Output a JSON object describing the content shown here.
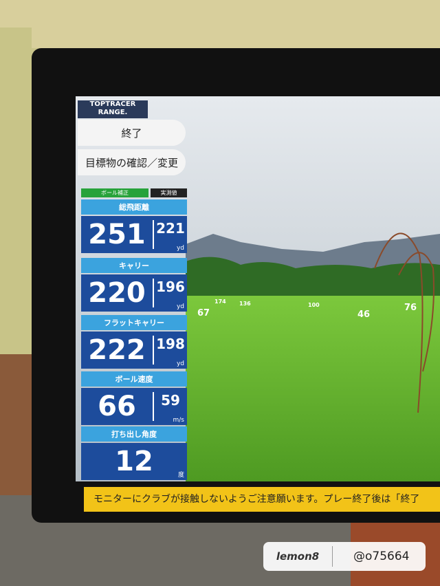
{
  "logo": {
    "brand": "TOPTRACER",
    "sub": "RANGE."
  },
  "buttons": [
    "終了",
    "目標物の確認／変更"
  ],
  "panel_header": {
    "left": "ボール補正",
    "right": "実測値"
  },
  "metrics": [
    {
      "label": "総飛距離",
      "value": 251,
      "measured": 221,
      "unit": "yd"
    },
    {
      "label": "キャリー",
      "value": 220,
      "measured": 196,
      "unit": "yd"
    },
    {
      "label": "フラットキャリー",
      "value": 222,
      "measured": 198,
      "unit": "yd"
    },
    {
      "label": "ボール速度",
      "value": 66,
      "measured": 59,
      "unit": "m/s"
    },
    {
      "label": "打ち出し角度",
      "value": 12,
      "unit": "度"
    }
  ],
  "targets": [
    67,
    174,
    136,
    100,
    46,
    76
  ],
  "notice": "モニターにクラブが接触しないようご注意願います。プレー終了後は「終了",
  "watermark": {
    "app": "lemon8",
    "user": "@o75664"
  }
}
